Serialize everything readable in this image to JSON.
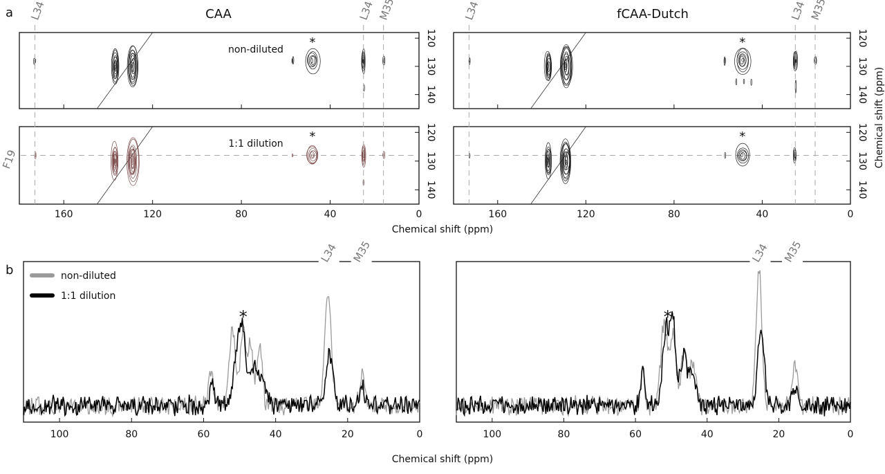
{
  "figure": {
    "panel_a": "a",
    "panel_b": "b",
    "xlabel": "Chemical shift (ppm)",
    "ylabel": "Chemical shift (ppm)"
  },
  "chart_data": [
    {
      "type": "heatmap",
      "panel": "a",
      "title": "CAA",
      "xlim": [
        180,
        0
      ],
      "ylim": [
        118,
        145
      ],
      "xticks": [
        160,
        120,
        80,
        40,
        0
      ],
      "yticks": [
        120,
        130,
        140
      ],
      "residue_lines": [
        {
          "label": "L34",
          "ppm": 173
        },
        {
          "label": "L34",
          "ppm": 25
        },
        {
          "label": "M35",
          "ppm": 16
        }
      ],
      "horizontal_line": {
        "label": "F19",
        "ppm": 128
      },
      "subplots": [
        {
          "label": "non-diluted",
          "color": "#1a1a1a",
          "asterisk_ppm": 48,
          "peaks": [
            [
              173,
              128,
              0.3,
              1.2,
              2
            ],
            [
              137,
              130,
              1.6,
              6,
              9
            ],
            [
              129,
              130,
              2.5,
              8,
              11
            ],
            [
              57,
              128,
              0.3,
              1.5,
              2
            ],
            [
              48,
              128,
              3,
              4,
              6
            ],
            [
              25,
              128,
              0.8,
              4,
              6
            ],
            [
              25,
              137.5,
              0.2,
              1,
              1
            ],
            [
              16,
              128,
              0.5,
              1.5,
              2
            ]
          ]
        },
        {
          "label": "1:1 dilution",
          "color": "#7a4848",
          "asterisk_ppm": 48,
          "peaks": [
            [
              173,
              128,
              0.3,
              1.2,
              2
            ],
            [
              137,
              130,
              1.4,
              6,
              9
            ],
            [
              129,
              130,
              2.5,
              8,
              11
            ],
            [
              57,
              128,
              0.2,
              0.6,
              1
            ],
            [
              48,
              128,
              3,
              3.5,
              6
            ],
            [
              25,
              128,
              0.8,
              3.5,
              6
            ],
            [
              25,
              137.5,
              0.2,
              1,
              1
            ],
            [
              16,
              128,
              0.4,
              1.3,
              2
            ]
          ]
        }
      ]
    },
    {
      "type": "heatmap",
      "panel": "a",
      "title": "fCAA-Dutch",
      "xlim": [
        180,
        0
      ],
      "ylim": [
        118,
        145
      ],
      "xticks": [
        160,
        120,
        80,
        40,
        0
      ],
      "yticks": [
        120,
        130,
        140
      ],
      "residue_lines": [
        {
          "label": "L34",
          "ppm": 173
        },
        {
          "label": "L34",
          "ppm": 25
        },
        {
          "label": "M35",
          "ppm": 16
        }
      ],
      "horizontal_line": {
        "label": "",
        "ppm": 128
      },
      "subplots": [
        {
          "label": "",
          "color": "#1a1a1a",
          "asterisk_ppm": 49,
          "peaks": [
            [
              173,
              128,
              0.3,
              1.2,
              2
            ],
            [
              137,
              130,
              1.6,
              6,
              9
            ],
            [
              129,
              130,
              2.5,
              8,
              11
            ],
            [
              57,
              128,
              0.3,
              1.5,
              2
            ],
            [
              49,
              128,
              3.5,
              4.5,
              7
            ],
            [
              25,
              128,
              0.8,
              4,
              6
            ],
            [
              25,
              137,
              0.2,
              2,
              1
            ],
            [
              16,
              128,
              0.5,
              1.5,
              2
            ],
            [
              52,
              135.5,
              0.2,
              1,
              1
            ],
            [
              48,
              135.5,
              0.2,
              1,
              1
            ],
            [
              45,
              135.5,
              0.2,
              1,
              1
            ]
          ]
        },
        {
          "label": "",
          "color": "#1a1a1a",
          "asterisk_ppm": 49,
          "peaks": [
            [
              173,
              128,
              0.15,
              0.8,
              1
            ],
            [
              137,
              130,
              1.4,
              6,
              9
            ],
            [
              129,
              130,
              2.5,
              8,
              11
            ],
            [
              57,
              128,
              0.2,
              1,
              1
            ],
            [
              49,
              128,
              3,
              3.5,
              6
            ],
            [
              25,
              128,
              0.6,
              2.5,
              4
            ]
          ]
        }
      ]
    },
    {
      "type": "line",
      "panel": "b",
      "title": "",
      "xlim": [
        110,
        0
      ],
      "ylim": [
        -0.15,
        1.3
      ],
      "xticks": [
        100,
        80,
        60,
        40,
        20,
        0
      ],
      "residue_labels": [
        {
          "label": "L34",
          "ppm": 25
        },
        {
          "label": "M35",
          "ppm": 16
        }
      ],
      "asterisk_ppm": 49,
      "legend": {
        "placement": "top-left"
      },
      "series": [
        {
          "name": "non-diluted",
          "color": "#9a9a9a",
          "peaks": [
            [
              58,
              0.35,
              0.6
            ],
            [
              52,
              0.68,
              0.9
            ],
            [
              49,
              0.7,
              0.8
            ],
            [
              47,
              0.55,
              0.7
            ],
            [
              44.5,
              0.55,
              0.8
            ],
            [
              25.5,
              1.0,
              0.9
            ],
            [
              16,
              0.28,
              0.7
            ]
          ]
        },
        {
          "name": "1:1 dilution",
          "color": "#000000",
          "peaks": [
            [
              57.5,
              0.2,
              0.6
            ],
            [
              51,
              0.35,
              1
            ],
            [
              49.3,
              0.66,
              0.9
            ],
            [
              46,
              0.35,
              1.2
            ],
            [
              43.5,
              0.2,
              1
            ],
            [
              25,
              0.45,
              1.0
            ],
            [
              16,
              0.17,
              0.7
            ]
          ]
        }
      ]
    },
    {
      "type": "line",
      "panel": "b",
      "title": "",
      "xlim": [
        110,
        0
      ],
      "ylim": [
        -0.15,
        1.3
      ],
      "xticks": [
        100,
        80,
        60,
        40,
        20,
        0
      ],
      "residue_labels": [
        {
          "label": "L34",
          "ppm": 25
        },
        {
          "label": "M35",
          "ppm": 16
        }
      ],
      "asterisk_ppm": 51,
      "series": [
        {
          "name": "non-diluted",
          "color": "#9a9a9a",
          "peaks": [
            [
              58,
              0.3,
              0.6
            ],
            [
              52,
              0.75,
              0.9
            ],
            [
              49.5,
              0.65,
              0.8
            ],
            [
              46.5,
              0.5,
              0.8
            ],
            [
              44,
              0.4,
              0.8
            ],
            [
              25.5,
              1.22,
              0.8
            ],
            [
              15.5,
              0.4,
              0.7
            ]
          ]
        },
        {
          "name": "1:1 dilution",
          "color": "#000000",
          "peaks": [
            [
              58,
              0.3,
              0.6
            ],
            [
              51.5,
              0.7,
              0.9
            ],
            [
              49.5,
              0.72,
              0.8
            ],
            [
              46.5,
              0.45,
              0.9
            ],
            [
              44,
              0.3,
              0.8
            ],
            [
              25,
              0.68,
              0.9
            ],
            [
              15.5,
              0.12,
              0.7
            ]
          ]
        }
      ]
    }
  ]
}
